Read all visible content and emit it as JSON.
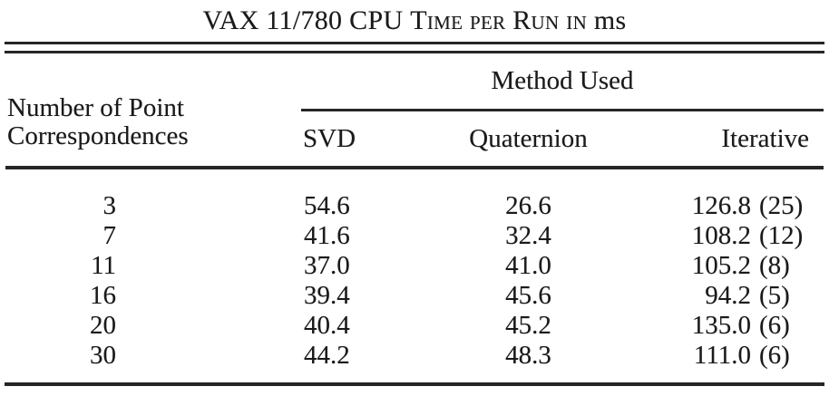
{
  "title": {
    "prefix": "VAX 11/780 CPU ",
    "smallcaps": "Time per Run in",
    "suffix": " ms"
  },
  "header": {
    "col1_line1": "Number of Point",
    "col1_line2": "Correspondences",
    "spanner": "Method Used",
    "methods": [
      "SVD",
      "Quaternion",
      "Iterative"
    ]
  },
  "rows": [
    {
      "n": "3",
      "svd": "54.6",
      "quaternion": "26.6",
      "iterative": "126.8",
      "iterations": "(25)"
    },
    {
      "n": "7",
      "svd": "41.6",
      "quaternion": "32.4",
      "iterative": "108.2",
      "iterations": "(12)"
    },
    {
      "n": "11",
      "svd": "37.0",
      "quaternion": "41.0",
      "iterative": "105.2",
      "iterations": "(8)"
    },
    {
      "n": "16",
      "svd": "39.4",
      "quaternion": "45.6",
      "iterative": "94.2",
      "iterations": "(5)"
    },
    {
      "n": "20",
      "svd": "40.4",
      "quaternion": "45.2",
      "iterative": "135.0",
      "iterations": "(6)"
    },
    {
      "n": "30",
      "svd": "44.2",
      "quaternion": "48.3",
      "iterative": "111.0",
      "iterations": "(6)"
    }
  ],
  "colors": {
    "ink": "#1a1a1a",
    "rule": "#262626",
    "background": "#ffffff"
  }
}
